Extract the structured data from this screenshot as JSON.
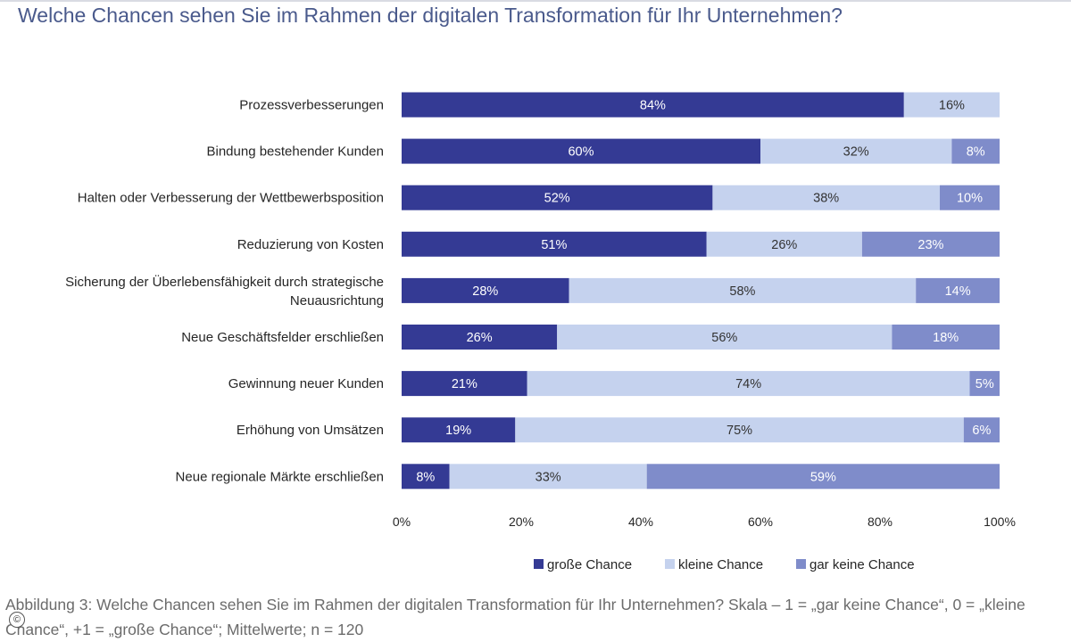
{
  "title": "Welche Chancen sehen Sie im Rahmen der digitalen Transformation für Ihr Unternehmen?",
  "caption": "Abbildung 3: Welche Chancen sehen Sie im Rahmen der digitalen Transformation für Ihr Unternehmen? Skala – 1 = „gar keine Chance“, 0 = „kleine Chance“, +1 = „große Chance“; Mittelwerte; n = 120",
  "copyright_icon": "copyright-icon",
  "chart_data": {
    "type": "bar",
    "orientation": "horizontal",
    "stacked": "100%",
    "title": "Welche Chancen sehen Sie im Rahmen der digitalen Transformation für Ihr Unternehmen?",
    "categories": [
      [
        "Prozessverbesserungen"
      ],
      [
        "Bindung bestehender  Kunden"
      ],
      [
        "Halten oder Verbesserung  der Wettbewerbsposition"
      ],
      [
        "Reduzierung von Kosten"
      ],
      [
        "Sicherung der Überlebensfähigkeit durch strategische",
        "Neuausrichtung"
      ],
      [
        "Neue Geschäftsfelder erschließen"
      ],
      [
        "Gewinnung  neuer Kunden"
      ],
      [
        "Erhöhung  von Umsätzen"
      ],
      [
        "Neue regionale Märkte erschließen"
      ]
    ],
    "series": [
      {
        "name": "große Chance",
        "color": "#343a94",
        "label_color": "#ffffff",
        "values": [
          84,
          60,
          52,
          51,
          28,
          26,
          21,
          19,
          8
        ]
      },
      {
        "name": "kleine Chance",
        "color": "#c5d2ee",
        "label_color": "#333333",
        "values": [
          16,
          32,
          38,
          26,
          58,
          56,
          74,
          75,
          33
        ]
      },
      {
        "name": "gar keine Chance",
        "color": "#7f8cca",
        "label_color": "#ffffff",
        "values": [
          0,
          8,
          10,
          23,
          14,
          18,
          5,
          6,
          59
        ]
      }
    ],
    "value_suffix": "%",
    "xlim": [
      0,
      100
    ],
    "xticks": [
      "0%",
      "20%",
      "40%",
      "60%",
      "80%",
      "100%"
    ],
    "xtick_values": [
      0,
      20,
      40,
      60,
      80,
      100
    ],
    "grid": false,
    "legend_position": "bottom"
  }
}
